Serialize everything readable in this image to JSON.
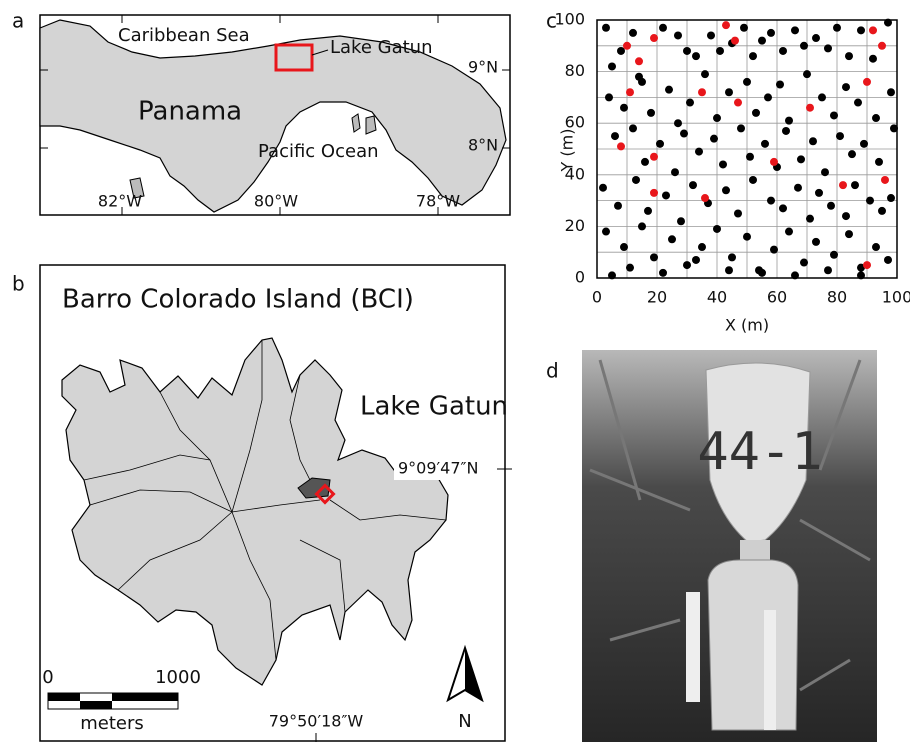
{
  "panel_labels": [
    "a",
    "b",
    "c",
    "d"
  ],
  "map_a": {
    "caribbean": "Caribbean Sea",
    "lake": "Lake Gatun",
    "country": "Panama",
    "pacific": "Pacific Ocean",
    "lat_labels": [
      "9°N",
      "8°N"
    ],
    "lon_labels": [
      "82°W",
      "80°W",
      "78°W"
    ]
  },
  "map_b": {
    "title": "Barro Colorado Island (BCI)",
    "lake": "Lake Gatun",
    "lat": "9°09′47″N",
    "lon": "79°50′18″W",
    "scale_labels": [
      "0",
      "1000"
    ],
    "scale_unit": "meters",
    "north": "N"
  },
  "chart_data": {
    "type": "scatter",
    "xlabel": "X (m)",
    "ylabel": "Y (m)",
    "xlim": [
      0,
      100
    ],
    "ylim": [
      0,
      100
    ],
    "xticks": [
      0,
      20,
      40,
      60,
      80,
      100
    ],
    "yticks": [
      0,
      20,
      40,
      60,
      80,
      100
    ],
    "xminor": [
      10,
      30,
      50,
      70,
      90
    ],
    "yminor": [
      10,
      30,
      50,
      70,
      90
    ],
    "grid": true,
    "series": [
      {
        "color": "#000000",
        "x": [
          3,
          8,
          12,
          5,
          15,
          22,
          27,
          30,
          33,
          38,
          41,
          45,
          49,
          52,
          55,
          58,
          62,
          66,
          69,
          73,
          77,
          80,
          84,
          88,
          92,
          97,
          4,
          9,
          14,
          18,
          24,
          27,
          31,
          36,
          40,
          44,
          50,
          53,
          57,
          61,
          64,
          70,
          75,
          79,
          83,
          87,
          93,
          98,
          6,
          12,
          16,
          21,
          26,
          29,
          34,
          39,
          42,
          48,
          51,
          56,
          60,
          63,
          68,
          72,
          76,
          81,
          85,
          89,
          94,
          99,
          2,
          7,
          13,
          17,
          23,
          28,
          32,
          37,
          43,
          47,
          52,
          58,
          62,
          67,
          71,
          74,
          78,
          83,
          86,
          91,
          95,
          98,
          3,
          9,
          15,
          19,
          25,
          30,
          35,
          40,
          45,
          50,
          54,
          59,
          64,
          69,
          73,
          79,
          84,
          88,
          93,
          97,
          5,
          11,
          22,
          33,
          44,
          55,
          66,
          77,
          88
        ],
        "values": [
          97,
          88,
          95,
          82,
          76,
          97,
          94,
          88,
          86,
          94,
          88,
          91,
          97,
          86,
          92,
          95,
          88,
          96,
          90,
          93,
          89,
          97,
          86,
          96,
          85,
          99,
          70,
          66,
          78,
          64,
          73,
          60,
          68,
          79,
          62,
          72,
          76,
          64,
          70,
          75,
          61,
          79,
          70,
          63,
          74,
          68,
          62,
          72,
          55,
          58,
          45,
          52,
          41,
          56,
          49,
          54,
          44,
          58,
          47,
          52,
          43,
          57,
          46,
          53,
          41,
          55,
          48,
          52,
          45,
          58,
          35,
          28,
          38,
          26,
          32,
          22,
          36,
          29,
          34,
          25,
          38,
          30,
          27,
          35,
          23,
          33,
          28,
          24,
          36,
          30,
          26,
          31,
          18,
          12,
          20,
          8,
          15,
          5,
          12,
          19,
          8,
          16,
          3,
          11,
          18,
          6,
          14,
          9,
          17,
          4,
          12,
          7,
          1,
          4,
          2,
          7,
          3,
          2,
          1,
          3,
          1
        ]
      },
      {
        "color": "#e8161b",
        "x": [
          10,
          19,
          14,
          11,
          8,
          19,
          19,
          35,
          43,
          46,
          47,
          36,
          71,
          59,
          82,
          90,
          92,
          95,
          96,
          90
        ],
        "values": [
          90,
          93,
          84,
          72,
          51,
          47,
          33,
          72,
          98,
          92,
          68,
          31,
          66,
          45,
          36,
          76,
          96,
          90,
          38,
          5
        ]
      }
    ]
  },
  "photo": {
    "tag": "44-1"
  }
}
